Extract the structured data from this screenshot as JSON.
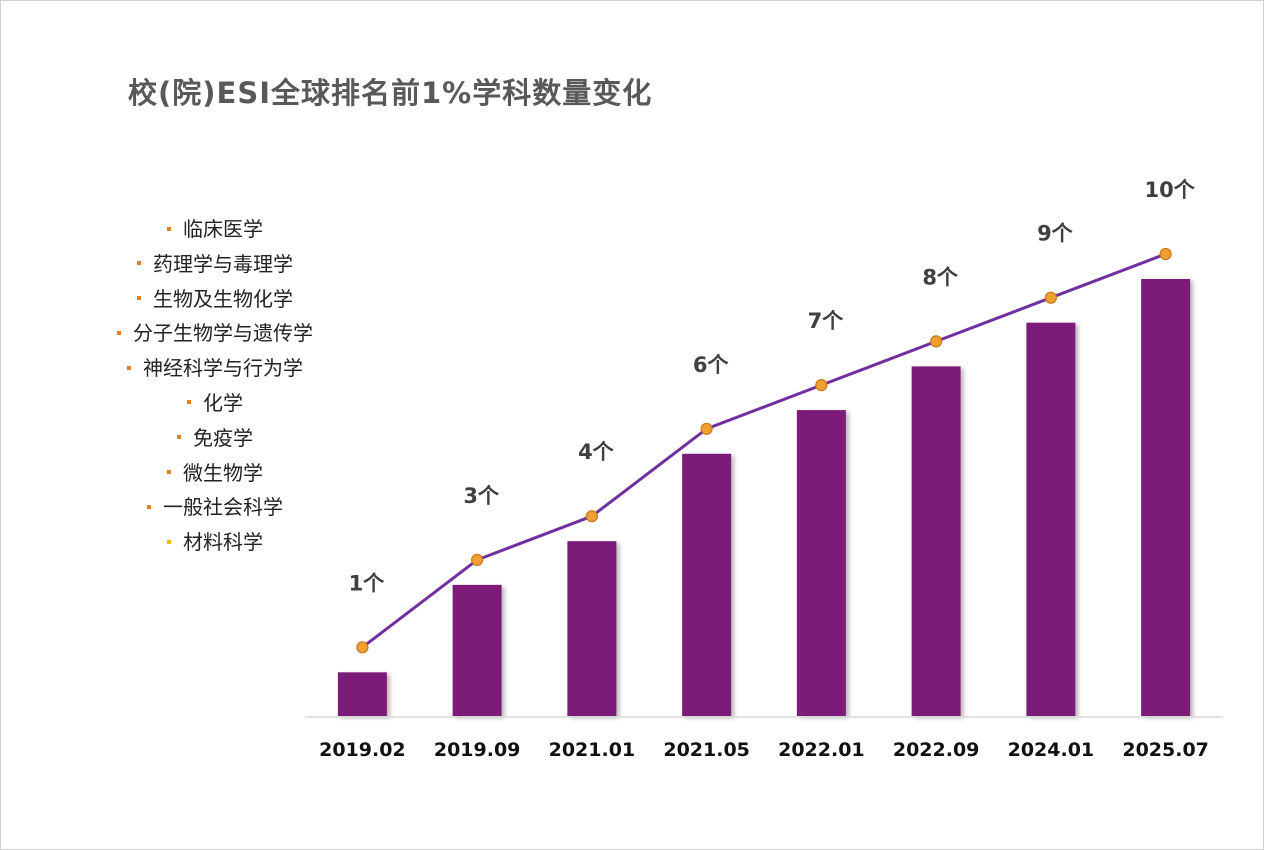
{
  "title": "校(院)ESI全球排名前1%学科数量变化",
  "legend": {
    "items": [
      {
        "label": "临床医学",
        "color": "#e67e22"
      },
      {
        "label": "药理学与毒理学",
        "color": "#e67e22"
      },
      {
        "label": "生物及生物化学",
        "color": "#e67e22"
      },
      {
        "label": "分子生物学与遗传学",
        "color": "#e67e22"
      },
      {
        "label": "神经科学与行为学",
        "color": "#e67e22"
      },
      {
        "label": "化学",
        "color": "#e67e22"
      },
      {
        "label": "免疫学",
        "color": "#e67e22"
      },
      {
        "label": "微生物学",
        "color": "#e67e22"
      },
      {
        "label": "一般社会科学",
        "color": "#e67e22"
      },
      {
        "label": "材料科学",
        "color": "#f5b800"
      }
    ]
  },
  "colors": {
    "bar": "#7d1a78",
    "line": "#7030a0",
    "marker_fill": "#f0a030",
    "marker_stroke": "#c87818",
    "axis": "#d9d9d9"
  },
  "chart_data": {
    "type": "bar",
    "title": "校(院)ESI全球排名前1%学科数量变化",
    "categories": [
      "2019.02",
      "2019.09",
      "2021.01",
      "2021.05",
      "2022.01",
      "2022.09",
      "2024.01",
      "2025.07"
    ],
    "values": [
      1,
      3,
      4,
      6,
      7,
      8,
      9,
      10
    ],
    "data_labels": [
      "1个",
      "3个",
      "4个",
      "6个",
      "7个",
      "8个",
      "9个",
      "10个"
    ],
    "overlay_line": true,
    "ylim": [
      0,
      11
    ],
    "grid": false
  }
}
